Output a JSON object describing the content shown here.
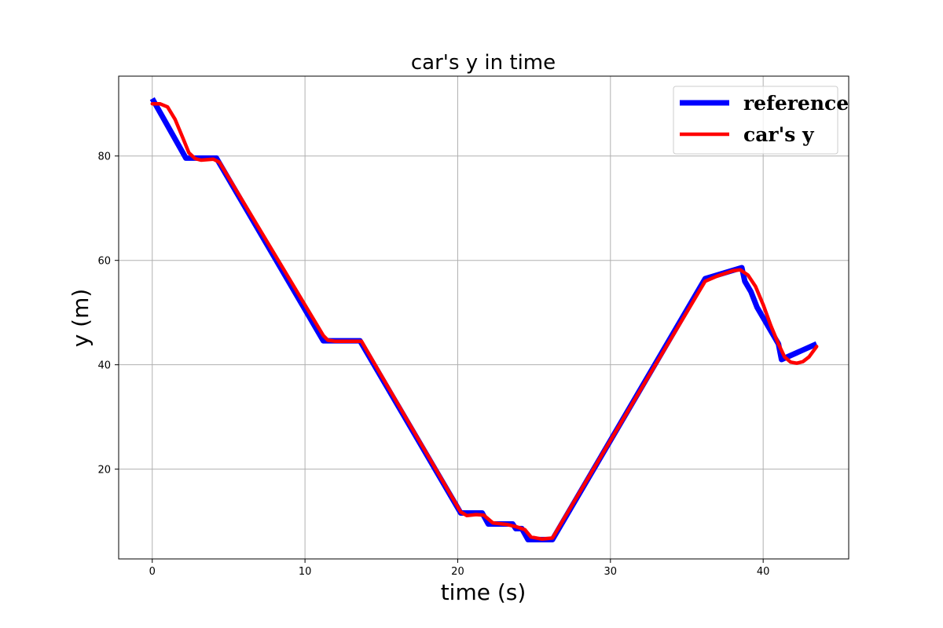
{
  "chart_data": {
    "type": "line",
    "title": "car's y in time",
    "xlabel": "time (s)",
    "ylabel": "y (m)",
    "xlim": [
      -2.2,
      45.6
    ],
    "ylim": [
      2.8,
      95.3
    ],
    "xticks": [
      0,
      10,
      20,
      30,
      40
    ],
    "yticks": [
      20,
      40,
      60,
      80
    ],
    "grid": true,
    "legend_position": "top-right",
    "series": [
      {
        "name": "reference",
        "color": "#0000ff",
        "x": [
          0,
          2.2,
          4.2,
          11.2,
          13.6,
          20.2,
          21.6,
          22.0,
          23.6,
          23.8,
          24.2,
          24.6,
          26.2,
          36.2,
          38.6,
          38.8,
          39.2,
          39.6,
          40.2,
          41.0,
          41.2,
          43.5
        ],
        "values": [
          91.0,
          79.6,
          79.6,
          44.6,
          44.6,
          11.6,
          11.6,
          9.5,
          9.5,
          8.6,
          8.6,
          6.5,
          6.5,
          56.5,
          58.6,
          56.0,
          54.0,
          51.0,
          48.0,
          44.0,
          41.0,
          44.0
        ]
      },
      {
        "name": "car's y",
        "color": "#ff0000",
        "x": [
          0,
          0.5,
          1.0,
          1.5,
          2.0,
          2.4,
          2.8,
          3.2,
          3.6,
          4.0,
          4.4,
          11.2,
          11.5,
          12.0,
          13.0,
          13.7,
          20.2,
          20.6,
          21.2,
          21.7,
          22.3,
          23.2,
          23.8,
          24.4,
          24.8,
          25.5,
          26.2,
          36.2,
          37.0,
          38.0,
          38.5,
          39.0,
          39.5,
          40.0,
          40.5,
          41.0,
          41.4,
          41.8,
          42.2,
          42.6,
          43.0,
          43.5
        ],
        "values": [
          90.0,
          90.0,
          89.4,
          87.0,
          83.5,
          80.6,
          79.5,
          79.2,
          79.3,
          79.4,
          78.8,
          45.6,
          44.7,
          44.5,
          44.5,
          44.5,
          11.8,
          11.1,
          11.3,
          11.2,
          9.7,
          9.4,
          9.0,
          8.4,
          7.0,
          6.6,
          6.8,
          56.0,
          57.0,
          58.0,
          58.2,
          57.2,
          55.0,
          51.5,
          47.5,
          44.0,
          41.5,
          40.5,
          40.3,
          40.6,
          41.5,
          43.5
        ]
      }
    ]
  }
}
